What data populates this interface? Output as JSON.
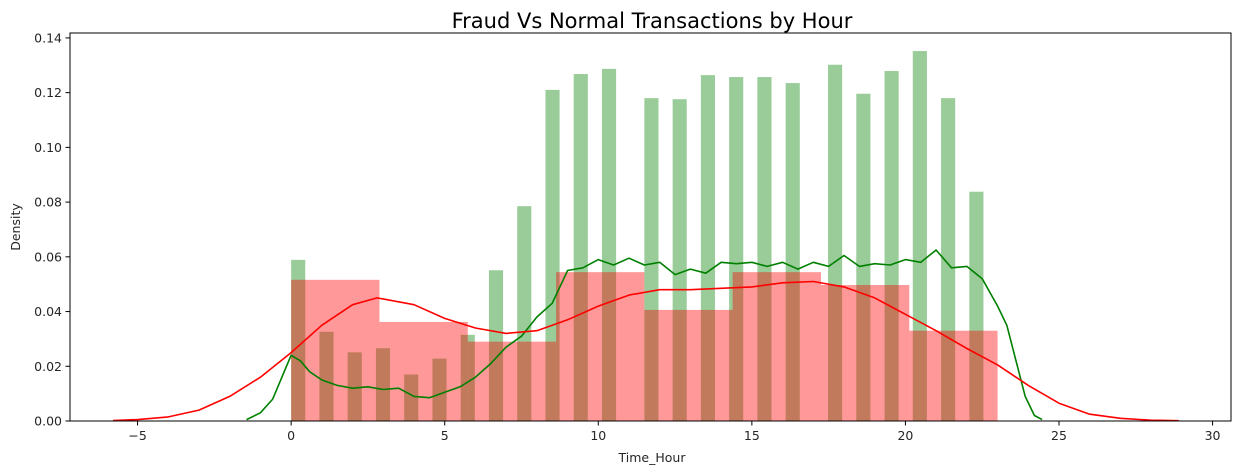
{
  "chart_data": {
    "type": "bar",
    "title": "Fraud Vs Normal Transactions by Hour",
    "xlabel": "Time_Hour",
    "ylabel": "Density",
    "xlim": [
      -7.2,
      30.6
    ],
    "ylim": [
      0,
      0.1418
    ],
    "xticks": [
      -5,
      0,
      5,
      10,
      15,
      20,
      25,
      30
    ],
    "xtick_labels": [
      "−5",
      "0",
      "5",
      "10",
      "15",
      "20",
      "25",
      "30"
    ],
    "yticks": [
      0,
      0.02,
      0.04,
      0.06,
      0.08,
      0.1,
      0.12,
      0.14
    ],
    "ytick_labels": [
      "0.00",
      "0.02",
      "0.04",
      "0.06",
      "0.08",
      "0.10",
      "0.12",
      "0.14"
    ],
    "grid": false,
    "colors": {
      "normal": "#008000",
      "fraud": "#ff0000"
    },
    "series": [
      {
        "kind": "hist",
        "color": "#008000",
        "opacity": 0.4,
        "bin_width": 0.46,
        "bins": [
          {
            "x0": 0.0,
            "value": 0.0589
          },
          {
            "x0": 0.92,
            "value": 0.0326
          },
          {
            "x0": 1.84,
            "value": 0.0251
          },
          {
            "x0": 2.76,
            "value": 0.0266
          },
          {
            "x0": 3.68,
            "value": 0.017
          },
          {
            "x0": 4.6,
            "value": 0.0228
          },
          {
            "x0": 5.52,
            "value": 0.0315
          },
          {
            "x0": 6.44,
            "value": 0.0551
          },
          {
            "x0": 7.36,
            "value": 0.0785
          },
          {
            "x0": 8.28,
            "value": 0.121
          },
          {
            "x0": 9.2,
            "value": 0.1268
          },
          {
            "x0": 10.12,
            "value": 0.1287
          },
          {
            "x0": 11.5,
            "value": 0.118
          },
          {
            "x0": 12.42,
            "value": 0.1176
          },
          {
            "x0": 13.34,
            "value": 0.1264
          },
          {
            "x0": 14.26,
            "value": 0.1257
          },
          {
            "x0": 15.18,
            "value": 0.1257
          },
          {
            "x0": 16.1,
            "value": 0.1235
          },
          {
            "x0": 17.48,
            "value": 0.1302
          },
          {
            "x0": 18.4,
            "value": 0.1196
          },
          {
            "x0": 19.32,
            "value": 0.1279
          },
          {
            "x0": 20.24,
            "value": 0.1352
          },
          {
            "x0": 21.16,
            "value": 0.118
          },
          {
            "x0": 22.08,
            "value": 0.0838
          }
        ]
      },
      {
        "kind": "hist",
        "color": "#ff0000",
        "opacity": 0.4,
        "bins": [
          {
            "x0": 0.0,
            "x1": 2.875,
            "value": 0.0516
          },
          {
            "x0": 2.875,
            "x1": 5.75,
            "value": 0.0362
          },
          {
            "x0": 5.75,
            "x1": 8.625,
            "value": 0.029
          },
          {
            "x0": 8.625,
            "x1": 11.5,
            "value": 0.0544
          },
          {
            "x0": 11.5,
            "x1": 14.375,
            "value": 0.0406
          },
          {
            "x0": 14.375,
            "x1": 17.25,
            "value": 0.0544
          },
          {
            "x0": 17.25,
            "x1": 20.125,
            "value": 0.0497
          },
          {
            "x0": 20.125,
            "x1": 23.0,
            "value": 0.033
          }
        ]
      },
      {
        "kind": "kde",
        "color": "#008000",
        "x": [
          -1.45,
          -1.0,
          -0.6,
          -0.3,
          0.0,
          0.3,
          0.6,
          1.0,
          1.5,
          2.0,
          2.5,
          3.0,
          3.5,
          4.0,
          4.5,
          5.0,
          5.5,
          6.0,
          6.5,
          7.0,
          7.5,
          8.0,
          8.5,
          9.0,
          9.5,
          10.0,
          10.5,
          11.0,
          11.5,
          12.0,
          12.5,
          13.0,
          13.5,
          14.0,
          14.5,
          15.0,
          15.5,
          16.0,
          16.5,
          17.0,
          17.5,
          18.0,
          18.5,
          19.0,
          19.5,
          20.0,
          20.5,
          21.0,
          21.5,
          22.0,
          22.5,
          23.0,
          23.3,
          23.6,
          23.9,
          24.2,
          24.45
        ],
        "y": [
          0.0005,
          0.003,
          0.008,
          0.016,
          0.024,
          0.022,
          0.018,
          0.015,
          0.013,
          0.012,
          0.0125,
          0.0115,
          0.012,
          0.009,
          0.0085,
          0.0105,
          0.0125,
          0.016,
          0.021,
          0.027,
          0.031,
          0.038,
          0.043,
          0.055,
          0.056,
          0.059,
          0.057,
          0.0595,
          0.057,
          0.058,
          0.0535,
          0.0555,
          0.054,
          0.058,
          0.0575,
          0.058,
          0.0565,
          0.058,
          0.0555,
          0.058,
          0.0565,
          0.0605,
          0.0565,
          0.0575,
          0.057,
          0.059,
          0.058,
          0.0625,
          0.056,
          0.0565,
          0.052,
          0.042,
          0.035,
          0.022,
          0.009,
          0.002,
          0.0005
        ]
      },
      {
        "kind": "kde",
        "color": "#ff0000",
        "x": [
          -5.8,
          -5.0,
          -4.0,
          -3.0,
          -2.0,
          -1.0,
          0.0,
          1.0,
          2.0,
          2.8,
          4.0,
          5.0,
          6.0,
          7.0,
          8.0,
          9.0,
          10.0,
          11.0,
          12.0,
          13.0,
          14.0,
          15.0,
          16.0,
          17.0,
          18.0,
          19.0,
          20.0,
          21.0,
          22.0,
          23.0,
          24.0,
          25.0,
          26.0,
          27.0,
          28.0,
          28.9
        ],
        "y": [
          0.0002,
          0.0005,
          0.0015,
          0.004,
          0.009,
          0.016,
          0.025,
          0.035,
          0.0425,
          0.045,
          0.0425,
          0.0375,
          0.034,
          0.032,
          0.033,
          0.037,
          0.042,
          0.046,
          0.048,
          0.048,
          0.0485,
          0.049,
          0.0505,
          0.051,
          0.049,
          0.045,
          0.039,
          0.033,
          0.0265,
          0.0205,
          0.013,
          0.0065,
          0.0025,
          0.001,
          0.0003,
          0.0001
        ]
      }
    ]
  }
}
